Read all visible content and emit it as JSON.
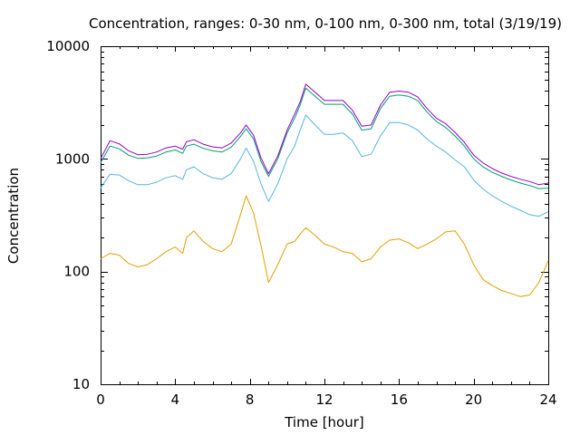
{
  "chart_data": {
    "type": "line",
    "title": "Concentration, ranges: 0-30 nm, 0-100 nm, 0-300 nm, total (3/19/19)",
    "xlabel": "Time [hour]",
    "ylabel": "Concentration",
    "xlim": [
      0,
      24
    ],
    "ylim": [
      10,
      10000
    ],
    "yscale": "log",
    "grid": false,
    "x_ticks": [
      {
        "value": 0,
        "label": "0"
      },
      {
        "value": 4,
        "label": "4"
      },
      {
        "value": 8,
        "label": "8"
      },
      {
        "value": 12,
        "label": "12"
      },
      {
        "value": 16,
        "label": "16"
      },
      {
        "value": 20,
        "label": "20"
      },
      {
        "value": 24,
        "label": "24"
      }
    ],
    "y_ticks": [
      {
        "value": 10,
        "label": "10"
      },
      {
        "value": 100,
        "label": "100"
      },
      {
        "value": 1000,
        "label": "1000"
      },
      {
        "value": 10000,
        "label": "10000"
      }
    ],
    "series": [
      {
        "color": "#e69f00",
        "x": [
          0,
          0.5,
          1,
          1.5,
          2,
          2.5,
          3,
          3.5,
          4,
          4.4,
          4.6,
          5,
          5.5,
          6,
          6.5,
          7,
          7.5,
          7.8,
          8.2,
          8.6,
          9,
          9.5,
          10,
          10.4,
          10.7,
          11,
          11.5,
          12,
          12.5,
          13,
          13.5,
          14,
          14.5,
          15,
          15.5,
          16,
          16.5,
          17,
          17.5,
          18,
          18.5,
          19,
          19.5,
          20,
          20.5,
          21,
          21.5,
          22,
          22.5,
          23,
          23.5,
          24
        ],
        "values": [
          130,
          145,
          140,
          118,
          110,
          115,
          130,
          150,
          165,
          145,
          200,
          230,
          185,
          160,
          150,
          175,
          320,
          470,
          330,
          170,
          80,
          115,
          175,
          185,
          215,
          245,
          210,
          175,
          165,
          150,
          145,
          122,
          130,
          165,
          190,
          195,
          180,
          160,
          175,
          195,
          225,
          230,
          175,
          115,
          85,
          75,
          68,
          64,
          60,
          62,
          80,
          125
        ]
      },
      {
        "color": "#56b4e9",
        "x": [
          0,
          0.5,
          1,
          1.5,
          2,
          2.5,
          3,
          3.5,
          4,
          4.4,
          4.6,
          5,
          5.5,
          6,
          6.5,
          7,
          7.5,
          7.8,
          8.2,
          8.6,
          9,
          9.5,
          10,
          10.4,
          10.7,
          11,
          11.5,
          12,
          12.5,
          13,
          13.5,
          14,
          14.5,
          15,
          15.5,
          16,
          16.5,
          17,
          17.5,
          18,
          18.5,
          19,
          19.5,
          20,
          20.5,
          21,
          21.5,
          22,
          22.5,
          23,
          23.5,
          24
        ],
        "values": [
          550,
          730,
          720,
          640,
          590,
          590,
          620,
          680,
          710,
          660,
          800,
          850,
          740,
          680,
          660,
          740,
          1000,
          1250,
          950,
          600,
          420,
          600,
          1000,
          1300,
          1800,
          2450,
          2000,
          1650,
          1650,
          1700,
          1450,
          1050,
          1100,
          1600,
          2100,
          2100,
          2000,
          1800,
          1500,
          1300,
          1150,
          980,
          850,
          650,
          540,
          470,
          420,
          380,
          350,
          320,
          310,
          340
        ]
      },
      {
        "color": "#009e73",
        "x": [
          0,
          0.5,
          1,
          1.5,
          2,
          2.5,
          3,
          3.5,
          4,
          4.4,
          4.6,
          5,
          5.5,
          6,
          6.5,
          7,
          7.5,
          7.8,
          8.2,
          8.6,
          9,
          9.5,
          10,
          10.4,
          10.7,
          11,
          11.5,
          12,
          12.5,
          13,
          13.5,
          14,
          14.5,
          15,
          15.5,
          16,
          16.5,
          17,
          17.5,
          18,
          18.5,
          19,
          19.5,
          20,
          20.5,
          21,
          21.5,
          22,
          22.5,
          23,
          23.5,
          24
        ],
        "values": [
          920,
          1300,
          1230,
          1080,
          1010,
          1020,
          1060,
          1150,
          1200,
          1120,
          1300,
          1350,
          1240,
          1180,
          1150,
          1270,
          1580,
          1850,
          1500,
          950,
          700,
          1000,
          1700,
          2300,
          3000,
          4250,
          3600,
          3050,
          3050,
          3050,
          2500,
          1800,
          1850,
          2800,
          3600,
          3700,
          3600,
          3300,
          2600,
          2150,
          1900,
          1600,
          1300,
          1000,
          850,
          760,
          700,
          650,
          610,
          580,
          545,
          550
        ]
      },
      {
        "color": "#9400d3",
        "x": [
          0,
          0.5,
          1,
          1.5,
          2,
          2.5,
          3,
          3.5,
          4,
          4.4,
          4.6,
          5,
          5.5,
          6,
          6.5,
          7,
          7.5,
          7.8,
          8.2,
          8.6,
          9,
          9.5,
          10,
          10.4,
          10.7,
          11,
          11.5,
          12,
          12.5,
          13,
          13.5,
          14,
          14.5,
          15,
          15.5,
          16,
          16.5,
          17,
          17.5,
          18,
          18.5,
          19,
          19.5,
          20,
          20.5,
          21,
          21.5,
          22,
          22.5,
          23,
          23.5,
          24
        ],
        "values": [
          1000,
          1450,
          1360,
          1180,
          1090,
          1100,
          1150,
          1250,
          1300,
          1220,
          1420,
          1480,
          1350,
          1280,
          1250,
          1380,
          1700,
          2000,
          1620,
          1020,
          740,
          1060,
          1800,
          2500,
          3200,
          4600,
          3900,
          3300,
          3300,
          3300,
          2700,
          1950,
          2000,
          3000,
          3900,
          4000,
          3900,
          3550,
          2800,
          2300,
          2050,
          1720,
          1400,
          1080,
          920,
          820,
          750,
          700,
          660,
          630,
          590,
          610
        ]
      }
    ]
  }
}
